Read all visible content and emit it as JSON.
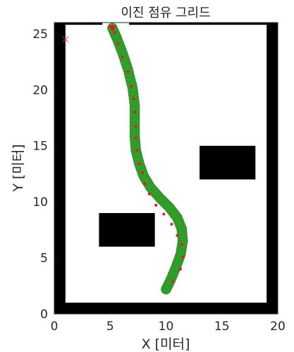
{
  "chart_data": {
    "type": "scatter",
    "title": "이진 점유 그리드",
    "xlabel": "X [미터]",
    "ylabel": "Y [미터]",
    "xlim": [
      0,
      20
    ],
    "ylim": [
      0,
      26
    ],
    "xticks": [
      "0",
      "5",
      "10",
      "15",
      "20"
    ],
    "yticks": [
      "0",
      "5",
      "10",
      "15",
      "20",
      "25"
    ],
    "grid": false,
    "occupied_regions": [
      {
        "name": "bottom-wall",
        "x": [
          0,
          20
        ],
        "y": [
          0,
          1
        ]
      },
      {
        "name": "left-wall",
        "x": [
          0,
          1
        ],
        "y": [
          0,
          26
        ]
      },
      {
        "name": "right-wall",
        "x": [
          19,
          20
        ],
        "y": [
          0,
          26
        ]
      },
      {
        "name": "top-left-wall",
        "x": [
          0,
          4.3
        ],
        "y": [
          25.8,
          26
        ]
      },
      {
        "name": "top-right-wall",
        "x": [
          6.7,
          20
        ],
        "y": [
          25.8,
          26
        ]
      },
      {
        "name": "obstacle-left",
        "x": [
          4,
          9
        ],
        "y": [
          6,
          9
        ]
      },
      {
        "name": "obstacle-right",
        "x": [
          13,
          18
        ],
        "y": [
          12,
          15
        ]
      }
    ],
    "series": [
      {
        "style": "green-band",
        "x": [
          10.0,
          10.4,
          10.9,
          11.3,
          11.5,
          11.4,
          11.0,
          10.3,
          9.4,
          8.6,
          8.0,
          7.6,
          7.3,
          7.2,
          7.2,
          7.2,
          7.0,
          6.6,
          6.1,
          5.6,
          5.2
        ],
        "y": [
          2.2,
          3.0,
          4.2,
          5.3,
          6.5,
          7.6,
          8.6,
          9.5,
          10.4,
          11.3,
          12.3,
          13.4,
          14.6,
          15.8,
          17.2,
          18.6,
          20.2,
          21.8,
          23.3,
          24.6,
          25.5
        ]
      },
      {
        "style": "red-dots",
        "x": [
          10.6,
          11.3,
          11.5,
          11.4,
          11.0,
          10.5,
          9.8,
          9.1,
          8.5,
          8.1,
          7.9,
          7.6,
          7.4,
          7.3,
          7.3,
          7.2,
          7.1,
          6.9,
          6.6,
          6.1,
          5.7,
          5.4
        ],
        "y": [
          2.9,
          4.0,
          5.1,
          6.2,
          7.0,
          8.0,
          8.9,
          9.7,
          10.7,
          11.6,
          12.6,
          13.4,
          14.6,
          15.7,
          16.7,
          18.0,
          19.2,
          20.3,
          21.6,
          22.9,
          24.1,
          25.1
        ]
      }
    ],
    "start_marker": {
      "x": 5.2,
      "y": 25.5
    },
    "cross_marker": {
      "x": 1.0,
      "y": 24.5
    }
  }
}
